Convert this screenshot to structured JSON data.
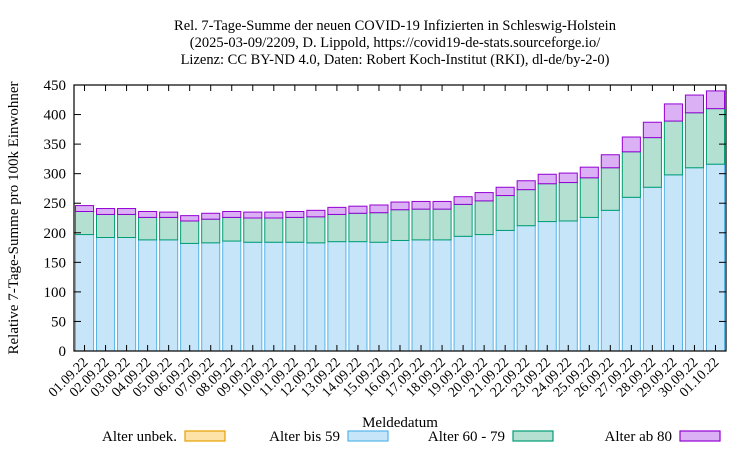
{
  "chart_data": {
    "type": "bar",
    "stacked": true,
    "title_lines": [
      "Rel. 7-Tage-Summe der neuen COVID-19 Infizierten in Schleswig-Holstein",
      "(2025-03-09/2209, D. Lippold, https://covid19-de-stats.sourceforge.io/",
      "Lizenz: CC BY-ND 4.0, Daten: Robert Koch-Institut (RKI), dl-de/by-2-0)"
    ],
    "xlabel": "Meldedatum",
    "ylabel": "Relative 7-Tage-Summe pro 100k Einwohner",
    "ylim": [
      0,
      450
    ],
    "yticks": [
      0,
      50,
      100,
      150,
      200,
      250,
      300,
      350,
      400,
      450
    ],
    "grid": false,
    "legend_position": "bottom",
    "categories": [
      "01.09.22",
      "02.09.22",
      "03.09.22",
      "04.09.22",
      "05.09.22",
      "06.09.22",
      "07.09.22",
      "08.09.22",
      "09.09.22",
      "10.09.22",
      "11.09.22",
      "12.09.22",
      "13.09.22",
      "14.09.22",
      "15.09.22",
      "16.09.22",
      "17.09.22",
      "18.09.22",
      "19.09.22",
      "20.09.22",
      "21.09.22",
      "22.09.22",
      "23.09.22",
      "24.09.22",
      "25.09.22",
      "26.09.22",
      "27.09.22",
      "28.09.22",
      "29.09.22",
      "30.09.22",
      "01.10.22"
    ],
    "series": [
      {
        "name": "Alter unbek.",
        "fill": "#fde3a7",
        "stroke": "#e69f00",
        "values": [
          0,
          0,
          0,
          0,
          0,
          0,
          0,
          0,
          0,
          0,
          0,
          0,
          0,
          0,
          0,
          0,
          0,
          0,
          0,
          0,
          0,
          0,
          0,
          0,
          0,
          0,
          0,
          0,
          0,
          0,
          0
        ]
      },
      {
        "name": "Alter bis 59",
        "fill": "#c6e5f8",
        "stroke": "#56b4e9",
        "values": [
          197,
          192,
          192,
          188,
          188,
          182,
          183,
          186,
          184,
          184,
          184,
          183,
          185,
          185,
          184,
          187,
          188,
          188,
          194,
          197,
          204,
          212,
          219,
          220,
          226,
          238,
          260,
          277,
          298,
          310,
          316
        ]
      },
      {
        "name": "Alter 60 - 79",
        "fill": "#b3e0d1",
        "stroke": "#009e73",
        "values": [
          39,
          39,
          39,
          38,
          38,
          38,
          40,
          40,
          41,
          41,
          42,
          44,
          46,
          48,
          50,
          52,
          52,
          52,
          54,
          57,
          59,
          61,
          64,
          65,
          67,
          72,
          77,
          84,
          91,
          93,
          94
        ]
      },
      {
        "name": "Alter ab 80",
        "fill": "#dbb0f5",
        "stroke": "#9400d3",
        "values": [
          10,
          10,
          10,
          10,
          9,
          9,
          10,
          10,
          10,
          10,
          10,
          11,
          12,
          12,
          13,
          13,
          13,
          13,
          13,
          14,
          14,
          15,
          16,
          16,
          18,
          22,
          25,
          26,
          29,
          30,
          30
        ]
      }
    ]
  }
}
